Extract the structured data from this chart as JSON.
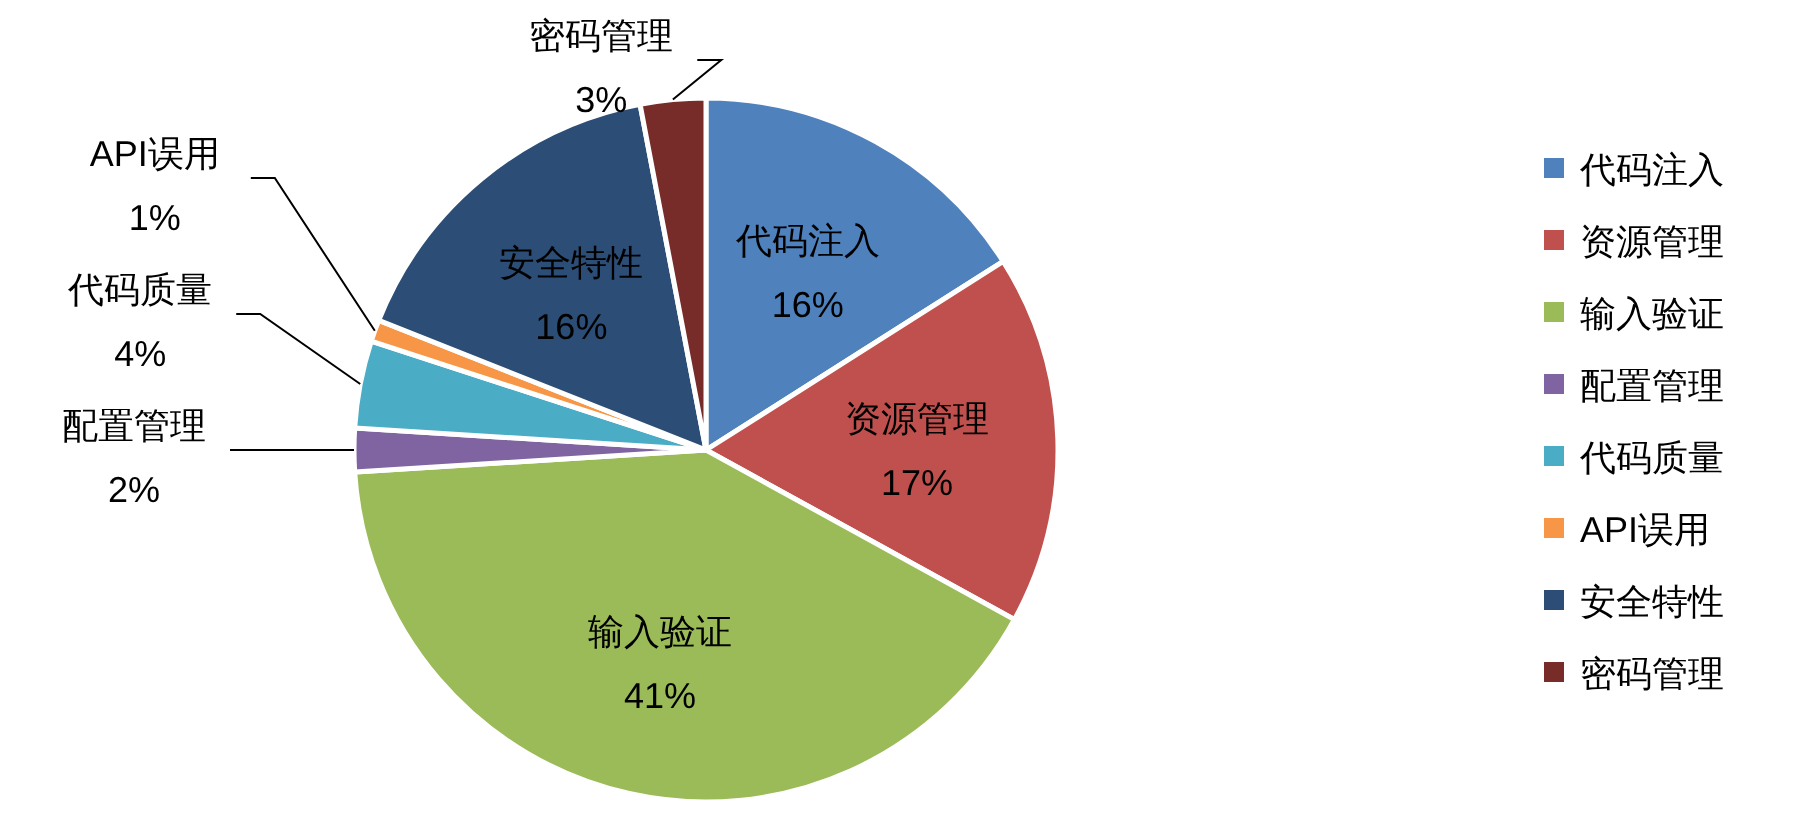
{
  "chart_data": {
    "type": "pie",
    "categories": [
      "代码注入",
      "资源管理",
      "输入验证",
      "配置管理",
      "代码质量",
      "API误用",
      "安全特性",
      "密码管理"
    ],
    "values": [
      16,
      17,
      41,
      2,
      4,
      1,
      16,
      3
    ],
    "colors": [
      "#4f81bd",
      "#c0504d",
      "#9bbb59",
      "#8064a2",
      "#4bacc6",
      "#f79646",
      "#2c4d75",
      "#772c2a"
    ],
    "value_labels": [
      "16%",
      "17%",
      "41%",
      "2%",
      "4%",
      "1%",
      "16%",
      "3%"
    ],
    "legend": "right"
  }
}
